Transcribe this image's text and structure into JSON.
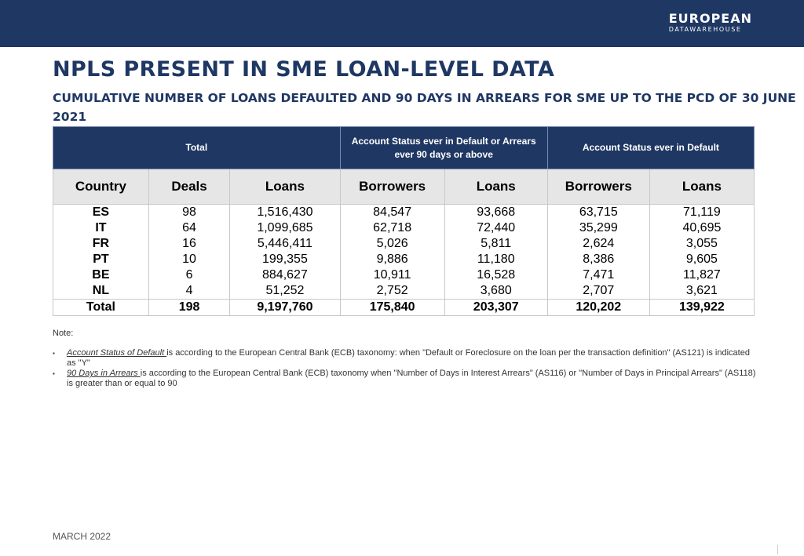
{
  "brand": {
    "name": "EUROPEAN",
    "subname": "DATAWAREHOUSE"
  },
  "title": "NPLS PRESENT IN SME LOAN-LEVEL DATA",
  "subtitle": "CUMULATIVE NUMBER OF LOANS DEFAULTED AND 90 DAYS IN ARREARS FOR SME UP TO THE PCD OF 30 JUNE 2021",
  "table": {
    "groups": [
      "Total",
      "Account Status ever in Default or Arrears ever 90 days or above",
      "Account Status  ever in Default"
    ],
    "columns": [
      "Country",
      "Deals",
      "Loans",
      "Borrowers",
      "Loans",
      "Borrowers",
      "Loans"
    ],
    "rows": [
      [
        "ES",
        "98",
        "1,516,430",
        "84,547",
        "93,668",
        "63,715",
        "71,119"
      ],
      [
        "IT",
        "64",
        "1,099,685",
        "62,718",
        "72,440",
        "35,299",
        "40,695"
      ],
      [
        "FR",
        "16",
        "5,446,411",
        "5,026",
        "5,811",
        "2,624",
        "3,055"
      ],
      [
        "PT",
        "10",
        "199,355",
        "9,886",
        "11,180",
        "8,386",
        "9,605"
      ],
      [
        "BE",
        "6",
        "884,627",
        "10,911",
        "16,528",
        "7,471",
        "11,827"
      ],
      [
        "NL",
        "4",
        "51,252",
        "2,752",
        "3,680",
        "2,707",
        "3,621"
      ]
    ],
    "total": [
      "Total",
      "198",
      "9,197,760",
      "175,840",
      "203,307",
      "120,202",
      "139,922"
    ]
  },
  "notes": {
    "label": "Note:",
    "items": [
      {
        "bullet": "▪",
        "term": "Account Status of Default ",
        "text": "is according to the European Central Bank (ECB) taxonomy: when \"Default or Foreclosure on the loan per the transaction definition\" (AS121) is indicated as \"Y\""
      },
      {
        "bullet": "▪",
        "term": "90 Days in Arrears ",
        "text": "is according to the European Central Bank (ECB) taxonomy when \"Number of Days in Interest Arrears\" (AS116) or \"Number of Days in Principal Arrears\" (AS118) is greater than or equal to 90"
      }
    ]
  },
  "footer": {
    "date": "MARCH 2022"
  },
  "colors": {
    "navy": "#1f3763",
    "header_gray": "#e6e6e6"
  }
}
